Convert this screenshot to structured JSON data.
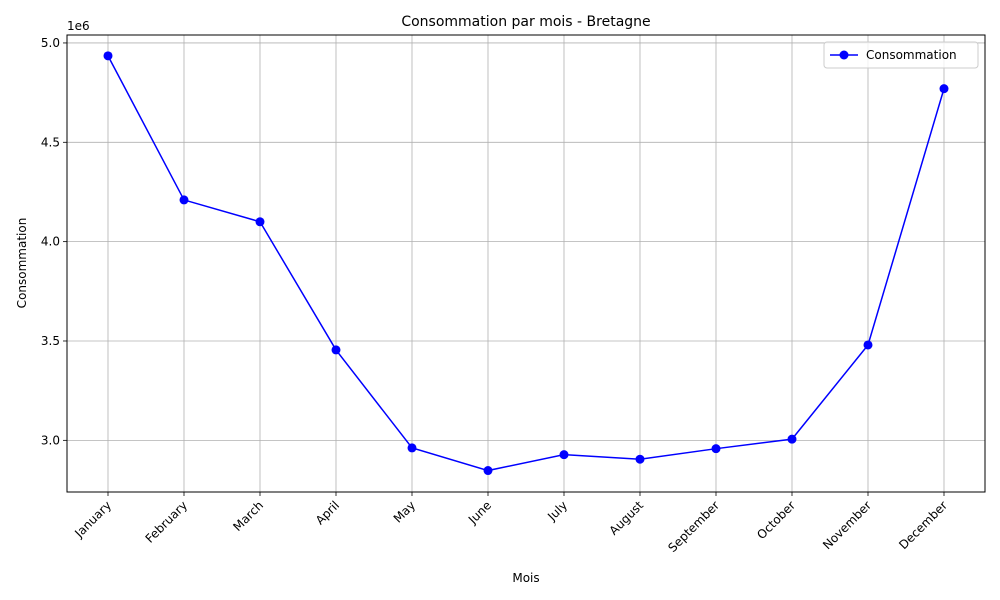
{
  "chart_data": {
    "type": "line",
    "title": "Consommation par mois - Bretagne",
    "xlabel": "Mois",
    "ylabel": "Consommation",
    "y_offset_label": "1e6",
    "categories": [
      "January",
      "February",
      "March",
      "April",
      "May",
      "June",
      "July",
      "August",
      "September",
      "October",
      "November",
      "December"
    ],
    "series": [
      {
        "name": "Consommation",
        "values": [
          4935000,
          4210000,
          4100000,
          3455000,
          2962000,
          2848000,
          2928000,
          2905000,
          2958000,
          3006000,
          3480000,
          4770000
        ],
        "color": "#0000ff",
        "marker": "circle"
      }
    ],
    "yticks": [
      "3.0",
      "3.5",
      "4.0",
      "4.5",
      "5.0"
    ],
    "ytick_values": [
      3000000,
      3500000,
      4000000,
      4500000,
      5000000
    ],
    "ylim": [
      2740000,
      5040000
    ],
    "grid": true,
    "legend_position": "top-right",
    "grid_color": "#b0b0b0"
  }
}
